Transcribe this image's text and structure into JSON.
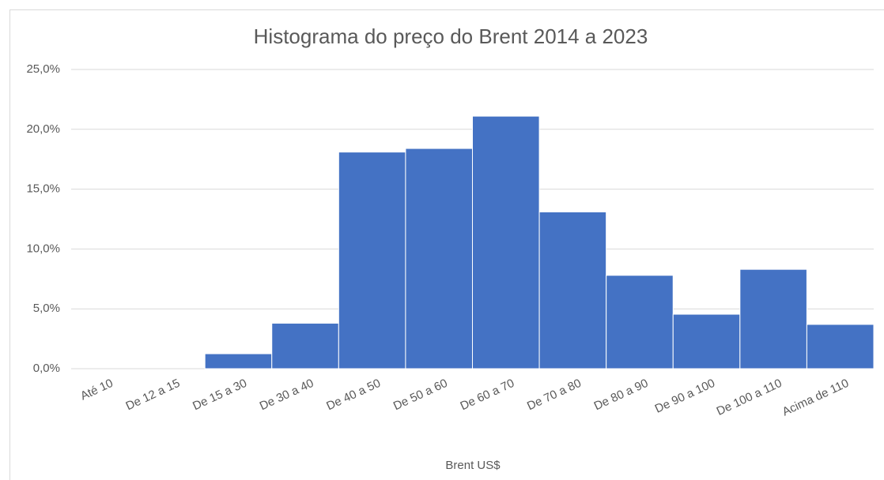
{
  "chart_data": {
    "type": "bar",
    "title": "Histograma do preço do Brent 2014 a 2023",
    "x_label": "Brent US$",
    "categories": [
      "Até 10",
      "De 12 a 15",
      "De 15 a 30",
      "De 30 a 40",
      "De 40 a 50",
      "De 50 a 60",
      "De 60 a 70",
      "De 70 a 80",
      "De 80 a 90",
      "De 90 a 100",
      "De 100 a 110",
      "Acima de 110"
    ],
    "values": [
      0,
      0,
      1.25,
      3.8,
      18.1,
      18.4,
      21.1,
      13.1,
      7.8,
      4.55,
      8.3,
      3.7
    ],
    "color": "#4472c4",
    "ylim": [
      0,
      25
    ],
    "yticks": [
      {
        "value": 0,
        "label": "0,0%"
      },
      {
        "value": 5,
        "label": "5,0%"
      },
      {
        "value": 10,
        "label": "10,0%"
      },
      {
        "value": 15,
        "label": "15,0%"
      },
      {
        "value": 20,
        "label": "20,0%"
      },
      {
        "value": 25,
        "label": "25,0%"
      }
    ],
    "grid": true
  }
}
